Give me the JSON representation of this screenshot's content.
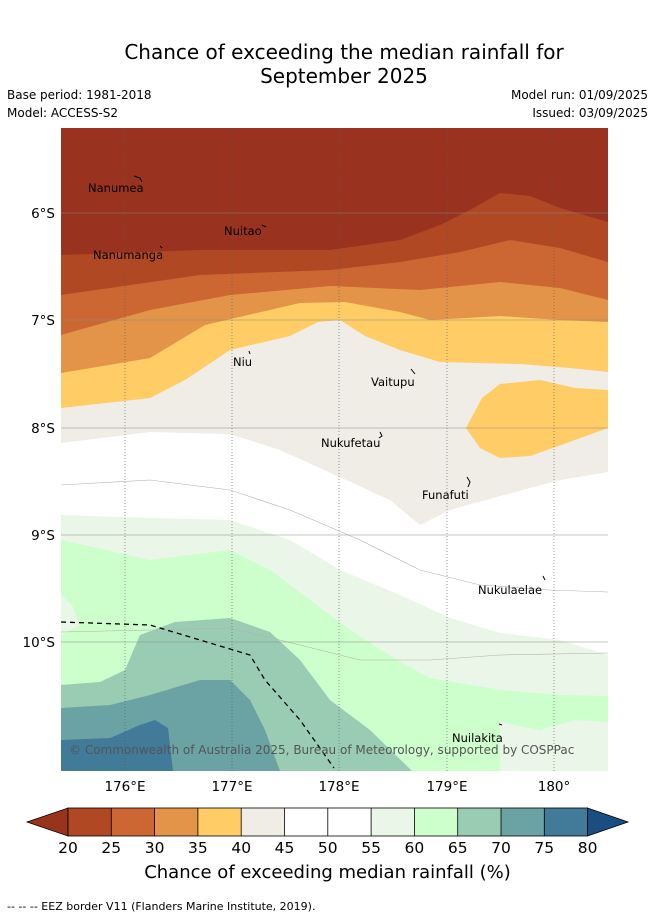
{
  "title": {
    "line1": "Chance of exceeding the median rainfall for",
    "line2": "September 2025"
  },
  "meta": {
    "base_period": "Base period: 1981-2018",
    "model": "Model: ACCESS-S2",
    "model_run": "Model run: 01/09/2025",
    "issued": "Issued: 03/09/2025"
  },
  "map": {
    "lat_labels": [
      "6°S",
      "7°S",
      "8°S",
      "9°S",
      "10°S"
    ],
    "lon_labels": [
      "176°E",
      "177°E",
      "178°E",
      "179°E",
      "180°"
    ],
    "places": [
      "Nanumea",
      "Nuitao",
      "Nanumanga",
      "Niu",
      "Vaitupu",
      "Nukufetau",
      "Funafuti",
      "Nukulaelae",
      "Nuilakita"
    ],
    "copyright": "© Commonwealth of Australia 2025, Bureau of Meteorology, supported by COSPPac",
    "colors": {
      "c20": "#99331f",
      "c25": "#b04823",
      "c30": "#cc6633",
      "c35": "#e39448",
      "c40": "#ffcc66",
      "c45": "#f0ece6",
      "c55": "#ffffff",
      "c60": "#eaf6e7",
      "c65": "#ccffcc",
      "c70": "#99ccb2",
      "c75": "#6ba3a5",
      "c80": "#427a99",
      "over": "#1a4d80",
      "under": "#993319"
    }
  },
  "colorbar": {
    "ticks": [
      "20",
      "25",
      "30",
      "35",
      "40",
      "45",
      "50",
      "55",
      "60",
      "65",
      "70",
      "75",
      "80"
    ],
    "title": "Chance of exceeding median rainfall (%)"
  },
  "footnote": "-- -- -- EEZ border V11 (Flanders Marine Institute, 2019)."
}
